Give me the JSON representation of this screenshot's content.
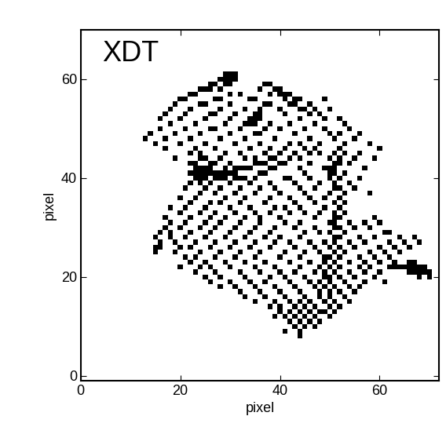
{
  "chart_data": {
    "type": "pixel_map",
    "title": "XDT",
    "x_label": "pixel",
    "y_label": "pixel",
    "color": "#000000",
    "xlim": [
      0,
      72
    ],
    "ylim": [
      -1,
      70
    ],
    "xticks": [
      0,
      20,
      40,
      60
    ],
    "yticks": [
      0,
      20,
      40,
      60
    ],
    "rows": [
      {
        "y": 61,
        "x": [
          29,
          30,
          31
        ]
      },
      {
        "y": 60,
        "x": [
          28,
          29,
          30,
          31
        ]
      },
      {
        "y": 59,
        "x": [
          26,
          27,
          29,
          30,
          37,
          38
        ]
      },
      {
        "y": 58,
        "x": [
          24,
          25,
          26,
          28,
          36,
          39,
          40
        ]
      },
      {
        "y": 57,
        "x": [
          22,
          23,
          30,
          32,
          38,
          40,
          41,
          42
        ]
      },
      {
        "y": 56,
        "x": [
          20,
          21,
          27,
          28,
          34,
          35,
          41,
          43,
          44,
          49
        ]
      },
      {
        "y": 55,
        "x": [
          19,
          24,
          25,
          30,
          37,
          38,
          42,
          43,
          46
        ]
      },
      {
        "y": 54,
        "x": [
          18,
          22,
          28,
          33,
          36,
          40,
          44,
          45,
          47,
          50
        ]
      },
      {
        "y": 53,
        "x": [
          17,
          21,
          26,
          27,
          31,
          35,
          36,
          41,
          46,
          48
        ]
      },
      {
        "y": 52,
        "x": [
          16,
          20,
          25,
          30,
          34,
          35,
          36,
          44,
          49,
          52
        ]
      },
      {
        "y": 51,
        "x": [
          18,
          23,
          29,
          33,
          34,
          35,
          38,
          42,
          47,
          53
        ]
      },
      {
        "y": 50,
        "x": [
          16,
          21,
          26,
          27,
          32,
          37,
          40,
          45,
          49,
          54
        ]
      },
      {
        "y": 49,
        "x": [
          14,
          19,
          24,
          30,
          35,
          36,
          43,
          50,
          52,
          56
        ]
      },
      {
        "y": 48,
        "x": [
          13,
          17,
          22,
          28,
          33,
          39,
          46,
          51,
          55
        ]
      },
      {
        "y": 47,
        "x": [
          15,
          20,
          25,
          31,
          36,
          42,
          44,
          48,
          53,
          58
        ]
      },
      {
        "y": 46,
        "x": [
          17,
          23,
          27,
          34,
          38,
          41,
          45,
          47,
          52,
          60
        ]
      },
      {
        "y": 45,
        "x": [
          22,
          24,
          29,
          32,
          37,
          40,
          43,
          46,
          48,
          51,
          53,
          56
        ]
      },
      {
        "y": 44,
        "x": [
          19,
          24,
          25,
          28,
          33,
          35,
          38,
          39,
          42,
          44,
          50,
          52,
          55,
          59
        ]
      },
      {
        "y": 43,
        "x": [
          22,
          23,
          26,
          27,
          30,
          35,
          36,
          37,
          40,
          41,
          46,
          51,
          52,
          54
        ]
      },
      {
        "y": 42,
        "x": [
          23,
          24,
          25,
          26,
          29,
          31,
          32,
          33,
          34,
          38,
          39,
          44,
          49,
          50,
          51,
          57
        ]
      },
      {
        "y": 41,
        "x": [
          22,
          23,
          24,
          25,
          26,
          27,
          28,
          29,
          30,
          31,
          36,
          37,
          45,
          50,
          51,
          53
        ]
      },
      {
        "y": 40,
        "x": [
          23,
          24,
          25,
          27,
          28,
          29,
          31,
          32,
          33,
          35,
          41,
          42,
          46,
          50,
          52,
          56
        ]
      },
      {
        "y": 39,
        "x": [
          22,
          24,
          26,
          30,
          34,
          38,
          43,
          48,
          51,
          54
        ]
      },
      {
        "y": 38,
        "x": [
          21,
          25,
          28,
          32,
          36,
          39,
          44,
          47,
          51,
          52,
          55
        ]
      },
      {
        "y": 37,
        "x": [
          24,
          27,
          31,
          35,
          40,
          45,
          50,
          53,
          58
        ]
      },
      {
        "y": 36,
        "x": [
          20,
          23,
          29,
          33,
          38,
          42,
          46,
          49,
          52
        ]
      },
      {
        "y": 35,
        "x": [
          22,
          26,
          28,
          32,
          37,
          43,
          47,
          51,
          53
        ]
      },
      {
        "y": 34,
        "x": [
          18,
          21,
          25,
          30,
          34,
          39,
          41,
          44,
          49,
          52
        ]
      },
      {
        "y": 33,
        "x": [
          20,
          24,
          27,
          31,
          35,
          38,
          42,
          45,
          48,
          51,
          53
        ]
      },
      {
        "y": 32,
        "x": [
          17,
          22,
          26,
          29,
          33,
          36,
          40,
          47,
          51,
          52,
          59
        ]
      },
      {
        "y": 31,
        "x": [
          18,
          21,
          25,
          28,
          32,
          36,
          41,
          44,
          50,
          51,
          54,
          57,
          60
        ]
      },
      {
        "y": 30,
        "x": [
          17,
          20,
          24,
          27,
          31,
          35,
          39,
          43,
          47,
          51,
          52,
          55,
          58
        ]
      },
      {
        "y": 29,
        "x": [
          16,
          18,
          22,
          26,
          30,
          34,
          38,
          45,
          48,
          50,
          53,
          61,
          62
        ]
      },
      {
        "y": 28,
        "x": [
          15,
          18,
          21,
          25,
          29,
          33,
          37,
          40,
          44,
          51,
          52,
          56,
          59,
          64,
          67
        ]
      },
      {
        "y": 27,
        "x": [
          16,
          19,
          23,
          27,
          31,
          35,
          39,
          42,
          46,
          49,
          51,
          54,
          57,
          62,
          65,
          68
        ]
      },
      {
        "y": 26,
        "x": [
          15,
          16,
          20,
          22,
          26,
          30,
          34,
          38,
          43,
          47,
          50,
          52,
          55,
          60,
          63,
          66
        ]
      },
      {
        "y": 25,
        "x": [
          15,
          19,
          24,
          28,
          32,
          36,
          41,
          45,
          48,
          51,
          53,
          58,
          61,
          64
        ]
      },
      {
        "y": 24,
        "x": [
          21,
          23,
          27,
          31,
          35,
          40,
          44,
          49,
          50,
          52,
          56,
          59,
          62
        ]
      },
      {
        "y": 23,
        "x": [
          22,
          25,
          29,
          33,
          37,
          42,
          46,
          49,
          51,
          54,
          57,
          60,
          63,
          66,
          67
        ]
      },
      {
        "y": 22,
        "x": [
          20,
          24,
          26,
          30,
          35,
          39,
          44,
          48,
          50,
          52,
          56,
          58,
          62,
          63,
          64,
          65,
          66,
          67,
          68,
          69
        ]
      },
      {
        "y": 21,
        "x": [
          23,
          27,
          32,
          36,
          40,
          43,
          47,
          49,
          51,
          54,
          57,
          60,
          66,
          67,
          68,
          69,
          70
        ]
      },
      {
        "y": 20,
        "x": [
          25,
          28,
          33,
          38,
          41,
          45,
          49,
          50,
          52,
          55,
          59,
          68,
          70
        ]
      },
      {
        "y": 19,
        "x": [
          26,
          30,
          34,
          37,
          42,
          46,
          48,
          50,
          53,
          57,
          61
        ]
      },
      {
        "y": 18,
        "x": [
          28,
          31,
          35,
          39,
          43,
          47,
          49,
          51,
          54,
          56
        ]
      },
      {
        "y": 17,
        "x": [
          32,
          36,
          40,
          44,
          48,
          50,
          52,
          55
        ]
      },
      {
        "y": 16,
        "x": [
          33,
          37,
          41,
          45,
          48,
          50,
          53
        ]
      },
      {
        "y": 15,
        "x": [
          35,
          39,
          42,
          44,
          46,
          49,
          51,
          54
        ]
      },
      {
        "y": 14,
        "x": [
          38,
          40,
          43,
          45,
          47,
          50,
          52
        ]
      },
      {
        "y": 13,
        "x": [
          40,
          42,
          44,
          46,
          48,
          49,
          51
        ]
      },
      {
        "y": 12,
        "x": [
          39,
          41,
          43,
          45,
          47,
          50
        ]
      },
      {
        "y": 11,
        "x": [
          42,
          44,
          46,
          48
        ]
      },
      {
        "y": 10,
        "x": [
          43,
          45,
          47
        ]
      },
      {
        "y": 9,
        "x": [
          41,
          44
        ]
      },
      {
        "y": 8,
        "x": [
          44
        ]
      }
    ]
  }
}
